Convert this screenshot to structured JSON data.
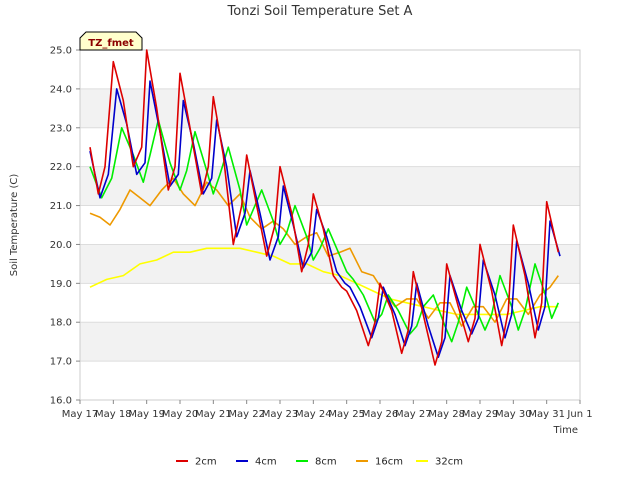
{
  "chart_data": {
    "type": "line",
    "title": "Tonzi Soil Temperature Set A",
    "xlabel": "Time",
    "ylabel": "Soil Temperature (C)",
    "ylim": [
      16.0,
      25.0
    ],
    "xlim": [
      0,
      15
    ],
    "yticks": [
      "16.0",
      "17.0",
      "18.0",
      "19.0",
      "20.0",
      "21.0",
      "22.0",
      "23.0",
      "24.0",
      "25.0"
    ],
    "xtick_labels": [
      "May 17",
      "May 18",
      "May 19",
      "May 20",
      "May 21",
      "May 22",
      "May 23",
      "May 24",
      "May 25",
      "May 26",
      "May 27",
      "May 28",
      "May 29",
      "May 30",
      "May 31",
      "Jun 1"
    ],
    "x_axis_note": "x values are days since May 17 00:00",
    "badge": "TZ_fmet",
    "grid": true,
    "legend_position": "bottom",
    "series": [
      {
        "name": "2cm",
        "color": "#dd0000",
        "x": [
          0.3,
          0.55,
          0.75,
          1.0,
          1.3,
          1.6,
          1.85,
          2.0,
          2.3,
          2.65,
          2.85,
          3.0,
          3.3,
          3.65,
          3.85,
          4.0,
          4.3,
          4.6,
          4.85,
          5.0,
          5.3,
          5.6,
          5.85,
          6.0,
          6.35,
          6.65,
          6.85,
          7.0,
          7.3,
          7.6,
          7.85,
          8.0,
          8.3,
          8.65,
          8.85,
          9.0,
          9.35,
          9.65,
          9.85,
          10.0,
          10.35,
          10.65,
          10.85,
          11.0,
          11.35,
          11.65,
          11.85,
          12.0,
          12.35,
          12.65,
          12.85,
          13.0,
          13.35,
          13.65,
          13.85,
          14.0,
          14.35
        ],
        "y": [
          22.5,
          21.3,
          22.0,
          24.7,
          23.7,
          22.0,
          22.5,
          25.0,
          23.5,
          21.4,
          22.0,
          24.4,
          23.0,
          21.3,
          22.0,
          23.8,
          22.3,
          20.0,
          21.0,
          22.3,
          21.0,
          19.7,
          20.5,
          22.0,
          20.8,
          19.3,
          20.0,
          21.3,
          20.4,
          19.2,
          18.9,
          18.8,
          18.3,
          17.4,
          18.0,
          19.0,
          18.3,
          17.2,
          17.8,
          19.3,
          18.0,
          16.9,
          17.5,
          19.5,
          18.4,
          17.5,
          18.1,
          20.0,
          18.8,
          17.4,
          18.3,
          20.5,
          19.2,
          17.6,
          18.5,
          21.1,
          19.8
        ]
      },
      {
        "name": "4cm",
        "color": "#0000cc",
        "x": [
          0.3,
          0.6,
          0.85,
          1.1,
          1.4,
          1.7,
          1.95,
          2.1,
          2.4,
          2.7,
          2.95,
          3.1,
          3.4,
          3.7,
          3.95,
          4.1,
          4.4,
          4.7,
          4.95,
          5.1,
          5.4,
          5.7,
          5.95,
          6.1,
          6.4,
          6.7,
          6.95,
          7.1,
          7.4,
          7.7,
          7.95,
          8.1,
          8.4,
          8.75,
          8.95,
          9.1,
          9.45,
          9.75,
          9.95,
          10.1,
          10.45,
          10.75,
          10.95,
          11.1,
          11.45,
          11.75,
          11.95,
          12.1,
          12.45,
          12.75,
          12.95,
          13.1,
          13.45,
          13.75,
          13.95,
          14.1,
          14.4
        ],
        "y": [
          22.4,
          21.2,
          21.8,
          24.0,
          23.1,
          21.8,
          22.1,
          24.2,
          22.9,
          21.5,
          21.8,
          23.7,
          22.6,
          21.3,
          21.7,
          23.2,
          22.0,
          20.2,
          20.8,
          21.9,
          20.8,
          19.6,
          20.2,
          21.5,
          20.5,
          19.4,
          19.8,
          20.9,
          20.2,
          19.3,
          19.0,
          18.9,
          18.4,
          17.6,
          18.1,
          18.9,
          18.2,
          17.4,
          17.9,
          19.0,
          17.9,
          17.1,
          17.6,
          19.2,
          18.3,
          17.7,
          18.1,
          19.6,
          18.7,
          17.6,
          18.2,
          20.1,
          19.0,
          17.8,
          18.4,
          20.6,
          19.7
        ]
      },
      {
        "name": "8cm",
        "color": "#00ee00",
        "x": [
          0.3,
          0.65,
          0.95,
          1.25,
          1.6,
          1.9,
          2.1,
          2.35,
          2.7,
          3.0,
          3.2,
          3.45,
          3.8,
          4.0,
          4.2,
          4.45,
          4.8,
          5.0,
          5.2,
          5.45,
          5.8,
          6.0,
          6.2,
          6.45,
          6.8,
          7.0,
          7.2,
          7.45,
          7.8,
          8.0,
          8.2,
          8.5,
          8.85,
          9.05,
          9.25,
          9.55,
          9.9,
          10.1,
          10.3,
          10.6,
          10.95,
          11.15,
          11.35,
          11.6,
          11.95,
          12.15,
          12.35,
          12.6,
          12.95,
          13.15,
          13.35,
          13.65,
          14.0,
          14.15,
          14.35
        ],
        "y": [
          22.0,
          21.2,
          21.7,
          23.0,
          22.3,
          21.6,
          22.3,
          23.2,
          22.1,
          21.4,
          21.9,
          22.9,
          21.9,
          21.3,
          21.8,
          22.5,
          21.4,
          20.5,
          20.9,
          21.4,
          20.6,
          20.0,
          20.3,
          21.0,
          20.2,
          19.6,
          19.9,
          20.4,
          19.7,
          19.3,
          19.1,
          18.7,
          18.0,
          18.2,
          18.7,
          18.3,
          17.7,
          17.9,
          18.4,
          18.7,
          17.9,
          17.5,
          18.0,
          18.9,
          18.2,
          17.8,
          18.2,
          19.2,
          18.4,
          17.8,
          18.3,
          19.5,
          18.6,
          18.1,
          18.5
        ]
      },
      {
        "name": "16cm",
        "color": "#ee9900",
        "x": [
          0.3,
          0.6,
          0.9,
          1.2,
          1.5,
          1.8,
          2.1,
          2.45,
          2.8,
          3.1,
          3.45,
          3.8,
          4.1,
          4.45,
          4.8,
          5.1,
          5.45,
          5.8,
          6.1,
          6.45,
          6.8,
          7.1,
          7.45,
          7.8,
          8.1,
          8.45,
          8.8,
          9.1,
          9.45,
          9.8,
          10.1,
          10.45,
          10.8,
          11.1,
          11.45,
          11.8,
          12.1,
          12.45,
          12.8,
          13.1,
          13.45,
          13.8,
          14.1,
          14.35
        ],
        "y": [
          20.8,
          20.7,
          20.5,
          20.9,
          21.4,
          21.2,
          21.0,
          21.4,
          21.7,
          21.3,
          21.0,
          21.6,
          21.4,
          21.0,
          21.3,
          20.7,
          20.4,
          20.6,
          20.4,
          20.0,
          20.2,
          20.3,
          19.7,
          19.8,
          19.9,
          19.3,
          19.2,
          18.8,
          18.4,
          18.6,
          18.6,
          18.1,
          18.5,
          18.5,
          17.9,
          18.4,
          18.4,
          18.0,
          18.6,
          18.6,
          18.2,
          18.7,
          18.9,
          19.2
        ]
      },
      {
        "name": "32cm",
        "color": "#ffff00",
        "x": [
          0.3,
          0.8,
          1.3,
          1.8,
          2.3,
          2.8,
          3.3,
          3.8,
          4.3,
          4.8,
          5.3,
          5.8,
          6.3,
          6.8,
          7.3,
          7.8,
          8.3,
          8.8,
          9.3,
          9.8,
          10.3,
          10.8,
          11.3,
          11.8,
          12.3,
          12.8,
          13.3,
          13.8,
          14.35
        ],
        "y": [
          18.9,
          19.1,
          19.2,
          19.5,
          19.6,
          19.8,
          19.8,
          19.9,
          19.9,
          19.9,
          19.8,
          19.7,
          19.5,
          19.5,
          19.3,
          19.2,
          19.0,
          18.8,
          18.6,
          18.5,
          18.4,
          18.3,
          18.2,
          18.2,
          18.2,
          18.2,
          18.3,
          18.4,
          18.4
        ]
      }
    ]
  }
}
